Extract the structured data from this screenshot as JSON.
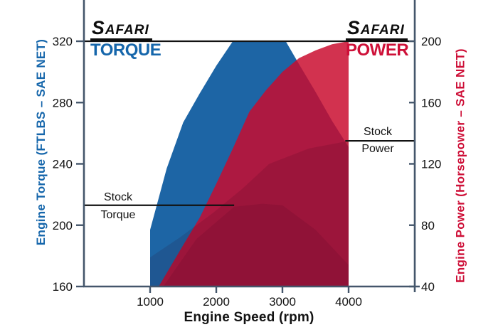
{
  "chart_data": {
    "type": "area",
    "xlabel": "Engine Speed (rpm)",
    "x_ticks": [
      1000,
      2000,
      3000,
      4000
    ],
    "x_range": [
      0,
      5000
    ],
    "grid": false,
    "left_axis": {
      "label": "Engine Torque (FTLBS – SAE NET)",
      "ticks": [
        160,
        200,
        240,
        280,
        320
      ],
      "range": [
        160,
        347
      ],
      "color": "#1566ab"
    },
    "right_axis": {
      "label": "Engine Power (Horsepower – SAE NET)",
      "ticks": [
        40,
        80,
        120,
        160,
        200
      ],
      "range": [
        40,
        227
      ],
      "color": "#ce1038"
    },
    "series": [
      {
        "name": "SAFARI Torque",
        "axis": "left",
        "fill": "#1d65a5",
        "opacity": 1,
        "points": [
          [
            1000,
            197
          ],
          [
            1250,
            237
          ],
          [
            1500,
            267
          ],
          [
            1750,
            286
          ],
          [
            2000,
            304
          ],
          [
            2250,
            320
          ],
          [
            3050,
            320
          ],
          [
            3250,
            305
          ],
          [
            3500,
            287
          ],
          [
            3750,
            268
          ],
          [
            4000,
            251
          ]
        ]
      },
      {
        "name": "SAFARI Power",
        "axis": "right",
        "fill": "#c90b2d",
        "opacity": 0.84,
        "points": [
          [
            1130,
            40
          ],
          [
            1500,
            67
          ],
          [
            1750,
            85
          ],
          [
            2000,
            107
          ],
          [
            2250,
            130
          ],
          [
            2500,
            154
          ],
          [
            2750,
            168
          ],
          [
            3000,
            180
          ],
          [
            3250,
            189
          ],
          [
            3500,
            194
          ],
          [
            3750,
            198
          ],
          [
            4000,
            200
          ]
        ]
      },
      {
        "name": "Stock Power",
        "axis": "right",
        "fill": "#2b0014",
        "opacity": 0.13,
        "points": [
          [
            1000,
            59
          ],
          [
            1450,
            72
          ],
          [
            1950,
            88
          ],
          [
            2400,
            104
          ],
          [
            2800,
            120
          ],
          [
            3400,
            130
          ],
          [
            4000,
            135
          ]
        ]
      },
      {
        "name": "Stock Torque",
        "axis": "left",
        "fill": "#2b0014",
        "opacity": 0.1,
        "points": [
          [
            1200,
            160
          ],
          [
            1700,
            191
          ],
          [
            2270,
            212
          ],
          [
            2700,
            214
          ],
          [
            3000,
            213
          ],
          [
            3500,
            197
          ],
          [
            4000,
            174
          ]
        ]
      }
    ],
    "reference_lines": [
      {
        "id": "peak",
        "axis": "left",
        "value": 320,
        "rpm_from": 0,
        "rpm_to": 5000
      },
      {
        "id": "stock-torque",
        "axis": "left",
        "value": 213,
        "rpm_from": 0,
        "rpm_to": 2270,
        "label_line1": "Stock",
        "label_line2": "Torque"
      },
      {
        "id": "stock-power",
        "axis": "right",
        "value": 135,
        "rpm_from": 3950,
        "rpm_to": 5000,
        "label_line1": "Stock",
        "label_line2": "Power"
      }
    ]
  },
  "legend_torque": {
    "brand": "SAFARI",
    "label": "TORQUE"
  },
  "legend_power": {
    "brand": "SAFARI",
    "label": "POWER"
  },
  "colors": {
    "torque_blue": "#1d65a5",
    "power_red": "#d12f4c",
    "overlap_maroon": "#a63b58",
    "axis_line": "#44566b",
    "text_black": "#121212"
  }
}
